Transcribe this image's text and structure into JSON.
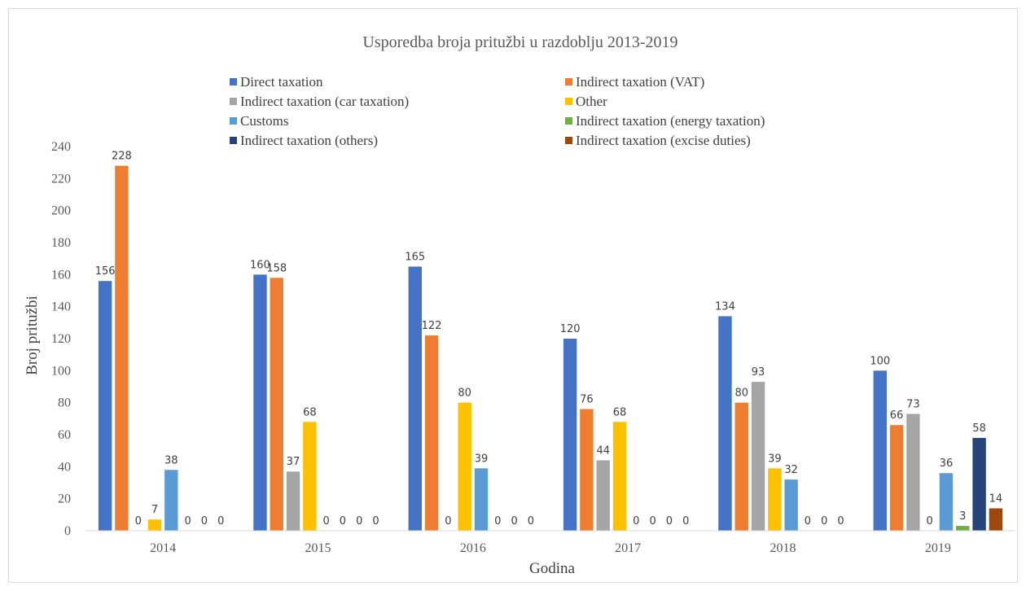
{
  "chart_data": {
    "type": "bar",
    "title": "Usporedba broja pritužbi u razdoblju 2013-2019",
    "xlabel": "Godina",
    "ylabel": "Broj pritužbi",
    "ylim": [
      0,
      240
    ],
    "yticks": [
      "0",
      "20",
      "40",
      "60",
      "80",
      "100",
      "120",
      "140",
      "160",
      "180",
      "200",
      "220",
      "240"
    ],
    "grid": false,
    "legend_position": "top",
    "categories": [
      "2014",
      "2015",
      "2016",
      "2017",
      "2018",
      "2019"
    ],
    "series": [
      {
        "name": "Direct taxation",
        "color": "#4472C4",
        "values": [
          156,
          160,
          165,
          120,
          134,
          100
        ]
      },
      {
        "name": "Indirect taxation (VAT)",
        "color": "#ED7D31",
        "values": [
          228,
          158,
          122,
          76,
          80,
          66
        ]
      },
      {
        "name": "Indirect taxation (car taxation)",
        "color": "#A5A5A5",
        "values": [
          0,
          37,
          0,
          44,
          93,
          73
        ]
      },
      {
        "name": "Other",
        "color": "#FFC000",
        "values": [
          7,
          68,
          80,
          68,
          39,
          0
        ]
      },
      {
        "name": "Customs",
        "color": "#5B9BD5",
        "values": [
          38,
          0,
          39,
          0,
          32,
          36
        ]
      },
      {
        "name": "Indirect taxation (energy taxation)",
        "color": "#70AD47",
        "values": [
          0,
          0,
          0,
          0,
          0,
          3
        ]
      },
      {
        "name": "Indirect taxation (others)",
        "color": "#264478",
        "values": [
          0,
          0,
          0,
          0,
          0,
          58
        ]
      },
      {
        "name": "Indirect taxation (excise duties)",
        "color": "#9E480E",
        "values": [
          0,
          0,
          0,
          0,
          0,
          14
        ]
      }
    ],
    "data_labels": [
      [
        "156",
        "228",
        "0",
        "7",
        "38",
        "0",
        "0",
        "0"
      ],
      [
        "160",
        "158",
        "37",
        "68",
        "0",
        "0",
        "0",
        "0"
      ],
      [
        "165",
        "122",
        "0",
        "80",
        "39",
        "0",
        "0",
        "0"
      ],
      [
        "120",
        "76",
        "44",
        "68",
        "0",
        "0",
        "0",
        "0"
      ],
      [
        "134",
        "80",
        "93",
        "39",
        "32",
        "0",
        "0",
        "0"
      ],
      [
        "100",
        "66",
        "73",
        "0",
        "36",
        "3",
        "58",
        "14"
      ]
    ]
  }
}
